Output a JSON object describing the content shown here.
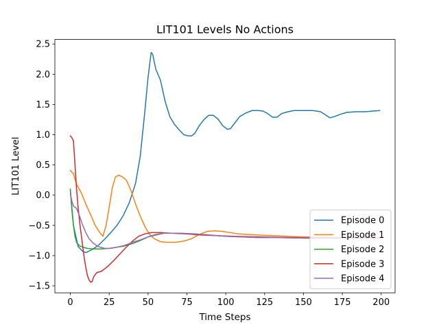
{
  "chart_data": {
    "type": "line",
    "title": "LIT101 Levels No Actions",
    "xlabel": "Time Steps",
    "ylabel": "LIT101 Level",
    "xlim": [
      -9.95,
      208.95
    ],
    "ylim": [
      -1.615,
      2.575
    ],
    "xticks": [
      0,
      25,
      50,
      75,
      100,
      125,
      150,
      175,
      200
    ],
    "yticks": [
      -1.5,
      -1.0,
      -0.5,
      0.0,
      0.5,
      1.0,
      1.5,
      2.0,
      2.5
    ],
    "xtick_labels": [
      "0",
      "25",
      "50",
      "75",
      "100",
      "125",
      "150",
      "175",
      "200"
    ],
    "ytick_labels": [
      "−1.5",
      "−1.0",
      "−0.5",
      "0.0",
      "0.5",
      "1.0",
      "1.5",
      "2.0",
      "2.5"
    ],
    "grid": false,
    "legend_position": "lower-right",
    "series": [
      {
        "name": "Episode 0",
        "color": "#1f77b4",
        "points": [
          [
            0,
            0.08
          ],
          [
            2,
            -0.5
          ],
          [
            5,
            -0.85
          ],
          [
            8,
            -0.93
          ],
          [
            10,
            -0.95
          ],
          [
            14,
            -0.9
          ],
          [
            18,
            -0.83
          ],
          [
            22,
            -0.73
          ],
          [
            26,
            -0.62
          ],
          [
            30,
            -0.5
          ],
          [
            34,
            -0.34
          ],
          [
            38,
            -0.12
          ],
          [
            42,
            0.2
          ],
          [
            45,
            0.65
          ],
          [
            48,
            1.4
          ],
          [
            50,
            1.95
          ],
          [
            52,
            2.36
          ],
          [
            53,
            2.33
          ],
          [
            55,
            2.08
          ],
          [
            58,
            1.9
          ],
          [
            61,
            1.55
          ],
          [
            64,
            1.3
          ],
          [
            67,
            1.17
          ],
          [
            70,
            1.08
          ],
          [
            73,
            1.0
          ],
          [
            76,
            0.98
          ],
          [
            78,
            0.98
          ],
          [
            80,
            1.02
          ],
          [
            83,
            1.15
          ],
          [
            86,
            1.25
          ],
          [
            89,
            1.32
          ],
          [
            92,
            1.32
          ],
          [
            95,
            1.26
          ],
          [
            98,
            1.15
          ],
          [
            101,
            1.09
          ],
          [
            103,
            1.1
          ],
          [
            106,
            1.2
          ],
          [
            109,
            1.3
          ],
          [
            113,
            1.36
          ],
          [
            117,
            1.4
          ],
          [
            121,
            1.4
          ],
          [
            124,
            1.39
          ],
          [
            127,
            1.35
          ],
          [
            130,
            1.29
          ],
          [
            133,
            1.29
          ],
          [
            136,
            1.35
          ],
          [
            140,
            1.38
          ],
          [
            144,
            1.4
          ],
          [
            150,
            1.4
          ],
          [
            156,
            1.4
          ],
          [
            161,
            1.38
          ],
          [
            164,
            1.33
          ],
          [
            167,
            1.28
          ],
          [
            170,
            1.3
          ],
          [
            174,
            1.34
          ],
          [
            178,
            1.37
          ],
          [
            184,
            1.38
          ],
          [
            190,
            1.38
          ],
          [
            194,
            1.39
          ],
          [
            199,
            1.4
          ]
        ]
      },
      {
        "name": "Episode 1",
        "color": "#ff7f0e",
        "points": [
          [
            0,
            0.41
          ],
          [
            2,
            0.35
          ],
          [
            4,
            0.18
          ],
          [
            7,
            0.04
          ],
          [
            10,
            -0.15
          ],
          [
            13,
            -0.32
          ],
          [
            16,
            -0.5
          ],
          [
            19,
            -0.62
          ],
          [
            21,
            -0.68
          ],
          [
            23,
            -0.5
          ],
          [
            25,
            -0.2
          ],
          [
            27,
            0.12
          ],
          [
            29,
            0.3
          ],
          [
            31,
            0.33
          ],
          [
            33,
            0.31
          ],
          [
            36,
            0.25
          ],
          [
            39,
            0.08
          ],
          [
            42,
            -0.15
          ],
          [
            45,
            -0.35
          ],
          [
            48,
            -0.52
          ],
          [
            51,
            -0.65
          ],
          [
            54,
            -0.72
          ],
          [
            58,
            -0.77
          ],
          [
            62,
            -0.78
          ],
          [
            68,
            -0.78
          ],
          [
            73,
            -0.76
          ],
          [
            78,
            -0.72
          ],
          [
            83,
            -0.65
          ],
          [
            88,
            -0.6
          ],
          [
            93,
            -0.59
          ],
          [
            98,
            -0.6
          ],
          [
            103,
            -0.62
          ],
          [
            108,
            -0.64
          ],
          [
            115,
            -0.65
          ],
          [
            122,
            -0.66
          ],
          [
            130,
            -0.67
          ],
          [
            140,
            -0.68
          ],
          [
            150,
            -0.69
          ],
          [
            165,
            -0.7
          ],
          [
            180,
            -0.7
          ],
          [
            199,
            -0.71
          ]
        ]
      },
      {
        "name": "Episode 2",
        "color": "#2ca02c",
        "points": [
          [
            0,
            0.1
          ],
          [
            1,
            -0.25
          ],
          [
            2,
            -0.5
          ],
          [
            3,
            -0.68
          ],
          [
            4,
            -0.78
          ],
          [
            6,
            -0.84
          ],
          [
            8,
            -0.86
          ],
          [
            11,
            -0.88
          ],
          [
            15,
            -0.89
          ],
          [
            20,
            -0.89
          ],
          [
            25,
            -0.88
          ],
          [
            30,
            -0.86
          ],
          [
            35,
            -0.84
          ],
          [
            40,
            -0.8
          ],
          [
            45,
            -0.75
          ],
          [
            50,
            -0.69
          ],
          [
            55,
            -0.65
          ],
          [
            60,
            -0.63
          ],
          [
            70,
            -0.63
          ],
          [
            80,
            -0.64
          ],
          [
            90,
            -0.66
          ],
          [
            100,
            -0.68
          ],
          [
            110,
            -0.69
          ],
          [
            120,
            -0.7
          ],
          [
            130,
            -0.7
          ],
          [
            150,
            -0.71
          ],
          [
            170,
            -0.71
          ],
          [
            199,
            -0.71
          ]
        ]
      },
      {
        "name": "Episode 3",
        "color": "#d62728",
        "points": [
          [
            0,
            0.98
          ],
          [
            1,
            0.95
          ],
          [
            2,
            0.9
          ],
          [
            3,
            0.5
          ],
          [
            4,
            0.1
          ],
          [
            5,
            -0.2
          ],
          [
            6,
            -0.45
          ],
          [
            7,
            -0.65
          ],
          [
            8,
            -0.85
          ],
          [
            9,
            -1.05
          ],
          [
            10,
            -1.2
          ],
          [
            11,
            -1.33
          ],
          [
            12,
            -1.4
          ],
          [
            13,
            -1.44
          ],
          [
            14,
            -1.43
          ],
          [
            15,
            -1.35
          ],
          [
            17,
            -1.28
          ],
          [
            20,
            -1.26
          ],
          [
            24,
            -1.18
          ],
          [
            28,
            -1.08
          ],
          [
            32,
            -0.97
          ],
          [
            36,
            -0.86
          ],
          [
            40,
            -0.76
          ],
          [
            44,
            -0.68
          ],
          [
            48,
            -0.64
          ],
          [
            52,
            -0.62
          ],
          [
            58,
            -0.62
          ],
          [
            65,
            -0.63
          ],
          [
            75,
            -0.64
          ],
          [
            85,
            -0.66
          ],
          [
            95,
            -0.67
          ],
          [
            105,
            -0.68
          ],
          [
            120,
            -0.69
          ],
          [
            140,
            -0.7
          ],
          [
            160,
            -0.71
          ],
          [
            180,
            -0.71
          ],
          [
            199,
            -0.71
          ]
        ]
      },
      {
        "name": "Episode 4",
        "color": "#9467bd",
        "points": [
          [
            0,
            0.02
          ],
          [
            1,
            -0.1
          ],
          [
            2,
            -0.18
          ],
          [
            4,
            -0.22
          ],
          [
            6,
            -0.35
          ],
          [
            8,
            -0.5
          ],
          [
            10,
            -0.62
          ],
          [
            12,
            -0.72
          ],
          [
            15,
            -0.8
          ],
          [
            18,
            -0.85
          ],
          [
            22,
            -0.88
          ],
          [
            26,
            -0.88
          ],
          [
            30,
            -0.86
          ],
          [
            35,
            -0.83
          ],
          [
            40,
            -0.78
          ],
          [
            45,
            -0.74
          ],
          [
            50,
            -0.69
          ],
          [
            55,
            -0.66
          ],
          [
            60,
            -0.63
          ],
          [
            70,
            -0.63
          ],
          [
            80,
            -0.64
          ],
          [
            90,
            -0.66
          ],
          [
            100,
            -0.68
          ],
          [
            110,
            -0.69
          ],
          [
            120,
            -0.7
          ],
          [
            130,
            -0.7
          ],
          [
            150,
            -0.71
          ],
          [
            170,
            -0.71
          ],
          [
            199,
            -0.71
          ]
        ]
      }
    ]
  }
}
